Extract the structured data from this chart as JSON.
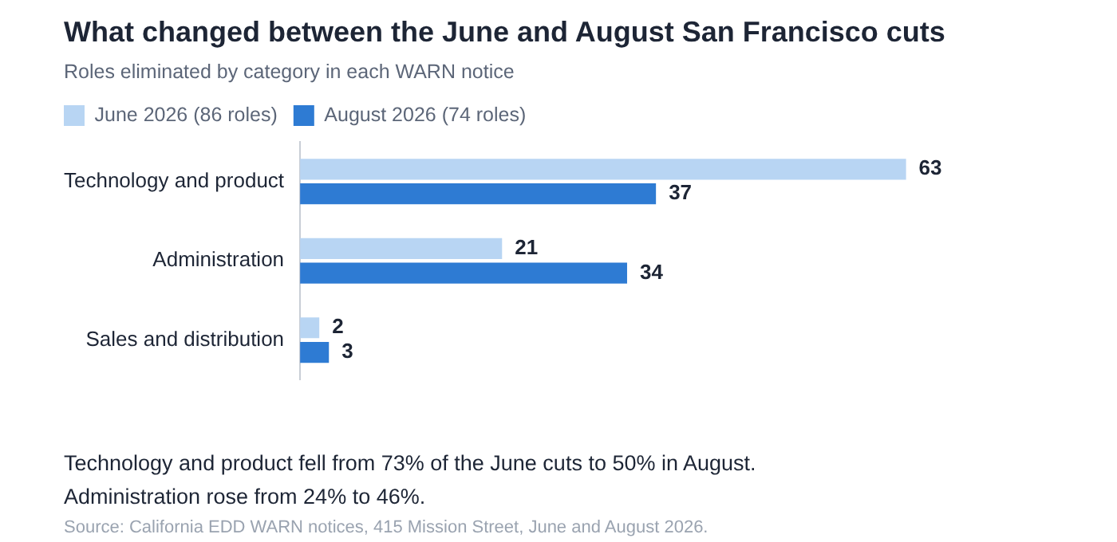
{
  "chart_data": {
    "type": "bar",
    "orientation": "horizontal",
    "title": "What changed between the June and August San Francisco cuts",
    "subtitle": "Roles eliminated by category in each WARN notice",
    "categories": [
      "Technology and product",
      "Administration",
      "Sales and distribution"
    ],
    "series": [
      {
        "name": "June 2026 (86 roles)",
        "color": "#b8d5f3",
        "values": [
          63,
          21,
          2
        ]
      },
      {
        "name": "August 2026 (74 roles)",
        "color": "#2e7bd3",
        "values": [
          37,
          34,
          3
        ]
      }
    ],
    "data_labels": true,
    "grid": false,
    "legend": "top left",
    "tick_labels": "y",
    "annotations": [
      "Technology and product fell from 73% of the June cuts to 50% in August.",
      "Administration rose from 24% to 46%.",
      "Source: California EDD WARN notices, 415 Mission Street, June and August 2026."
    ]
  }
}
